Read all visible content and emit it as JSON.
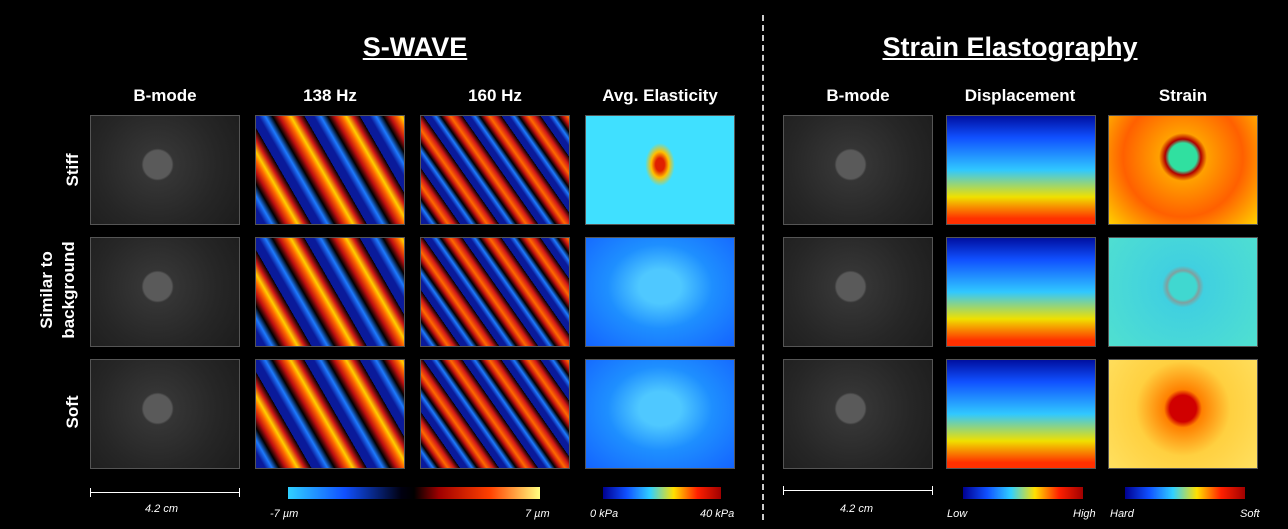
{
  "swave": {
    "title": "S-WAVE",
    "columns": [
      "B-mode",
      "138 Hz",
      "160 Hz",
      "Avg. Elasticity"
    ],
    "scale_bar": "4.2 cm",
    "wave_colorbar": [
      "-7 µm",
      "7 µm"
    ],
    "elasticity_colorbar": [
      "0 kPa",
      "40 kPa"
    ]
  },
  "strain": {
    "title": "Strain Elastography",
    "columns": [
      "B-mode",
      "Displacement",
      "Strain"
    ],
    "scale_bar": "4.2 cm",
    "displacement_colorbar": [
      "Low",
      "High"
    ],
    "strain_colorbar": [
      "Hard",
      "Soft"
    ]
  },
  "rows": [
    "Stiff",
    "Similar to background",
    "Soft"
  ]
}
